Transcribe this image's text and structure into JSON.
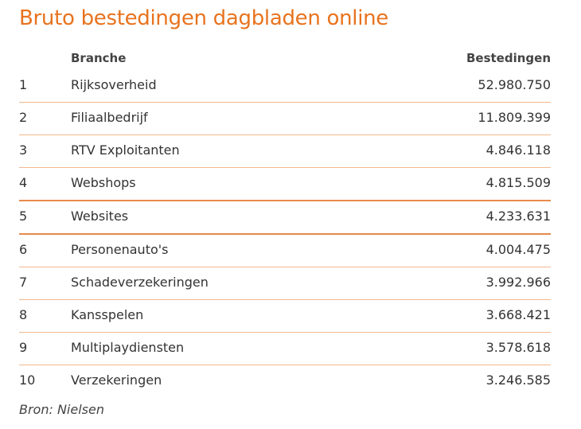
{
  "title": "Bruto bestedingen dagbladen online",
  "headers": {
    "branche": "Branche",
    "bestedingen": "Bestedingen"
  },
  "chart_data": {
    "type": "table",
    "title": "Bruto bestedingen dagbladen online",
    "columns": [
      "",
      "Branche",
      "Bestedingen"
    ],
    "rows": [
      {
        "rank": "1",
        "branche": "Rijksoverheid",
        "bestedingen": "52.980.750"
      },
      {
        "rank": "2",
        "branche": "Filiaalbedrijf",
        "bestedingen": "11.809.399"
      },
      {
        "rank": "3",
        "branche": "RTV Exploitanten",
        "bestedingen": "4.846.118"
      },
      {
        "rank": "4",
        "branche": "Webshops",
        "bestedingen": "4.815.509"
      },
      {
        "rank": "5",
        "branche": "Websites",
        "bestedingen": "4.233.631"
      },
      {
        "rank": "6",
        "branche": "Personenauto's",
        "bestedingen": "4.004.475"
      },
      {
        "rank": "7",
        "branche": "Schadeverzekeringen",
        "bestedingen": "3.992.966"
      },
      {
        "rank": "8",
        "branche": "Kansspelen",
        "bestedingen": "3.668.421"
      },
      {
        "rank": "9",
        "branche": "Multiplaydiensten",
        "bestedingen": "3.578.618"
      },
      {
        "rank": "10",
        "branche": "Verzekeringen",
        "bestedingen": "3.246.585"
      }
    ]
  },
  "source": "Bron: Nielsen",
  "colors": {
    "accent": "#e8731e",
    "rule": "#f0b98f"
  }
}
